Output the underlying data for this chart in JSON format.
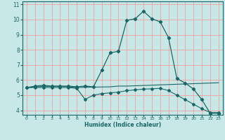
{
  "xlabel": "Humidex (Indice chaleur)",
  "bg_color": "#c8e8e8",
  "grid_color": "#f0a0a0",
  "line_color": "#1a6666",
  "xlim": [
    -0.5,
    23.5
  ],
  "ylim": [
    3.7,
    11.2
  ],
  "xticks": [
    0,
    1,
    2,
    3,
    4,
    5,
    6,
    7,
    8,
    9,
    10,
    11,
    12,
    13,
    14,
    15,
    16,
    17,
    18,
    19,
    20,
    21,
    22,
    23
  ],
  "yticks": [
    4,
    5,
    6,
    7,
    8,
    9,
    10,
    11
  ],
  "line1_x": [
    0,
    1,
    2,
    3,
    4,
    5,
    6,
    7,
    8,
    9,
    10,
    11,
    12,
    13,
    14,
    15,
    16,
    17,
    18,
    19,
    20,
    21,
    22,
    23
  ],
  "line1_y": [
    5.5,
    5.6,
    5.65,
    5.6,
    5.6,
    5.6,
    5.55,
    5.6,
    5.55,
    6.65,
    7.8,
    7.9,
    9.95,
    10.05,
    10.55,
    10.05,
    9.85,
    8.8,
    6.1,
    5.8,
    5.4,
    4.7,
    3.8,
    3.8
  ],
  "line2_x": [
    0,
    1,
    2,
    3,
    4,
    5,
    6,
    7,
    8,
    9,
    10,
    11,
    12,
    13,
    14,
    15,
    16,
    17,
    18,
    19,
    20,
    21,
    22,
    23
  ],
  "line2_y": [
    5.5,
    5.55,
    5.58,
    5.58,
    5.58,
    5.56,
    5.5,
    5.52,
    5.53,
    5.54,
    5.55,
    5.6,
    5.6,
    5.62,
    5.64,
    5.66,
    5.68,
    5.7,
    5.72,
    5.74,
    5.76,
    5.78,
    5.8,
    5.82
  ],
  "line3_x": [
    0,
    1,
    2,
    3,
    4,
    5,
    6,
    7,
    8,
    9,
    10,
    11,
    12,
    13,
    14,
    15,
    16,
    17,
    18,
    19,
    20,
    21,
    22,
    23
  ],
  "line3_y": [
    5.5,
    5.5,
    5.5,
    5.5,
    5.5,
    5.5,
    5.45,
    4.72,
    5.0,
    5.1,
    5.15,
    5.2,
    5.3,
    5.35,
    5.4,
    5.42,
    5.45,
    5.3,
    5.0,
    4.7,
    4.4,
    4.1,
    3.85,
    3.85
  ]
}
